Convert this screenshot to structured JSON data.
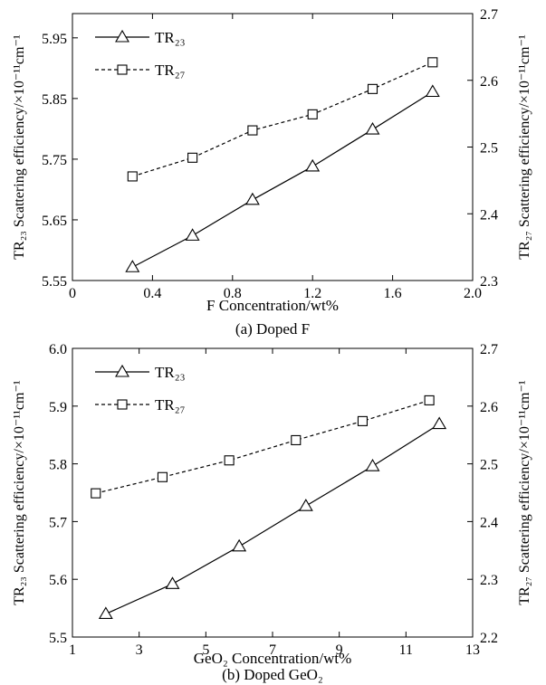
{
  "chart_data": [
    {
      "type": "line",
      "xlabel": "F Concentration/wt%",
      "caption": "(a) Doped F",
      "ylabel_left": "TR₂₃ Scattering efficiency/×10⁻¹¹cm⁻¹",
      "ylabel_right": "TR₂₇ Scattering efficiency/×10⁻¹¹cm⁻¹",
      "xlim": [
        0,
        2.0
      ],
      "xticks": [
        "0",
        "0.4",
        "0.8",
        "1.2",
        "1.6",
        "2.0"
      ],
      "ylim_left": [
        5.55,
        5.99
      ],
      "yticks_left": [
        "5.55",
        "5.65",
        "5.75",
        "5.85",
        "5.95"
      ],
      "ylim_right": [
        2.3,
        2.7
      ],
      "yticks_right": [
        "2.3",
        "2.4",
        "2.5",
        "2.6",
        "2.7"
      ],
      "legend_position": "top-left",
      "series": [
        {
          "name": "TR₂₃",
          "axis": "left",
          "marker": "triangle",
          "style": "solid",
          "x": [
            0.3,
            0.6,
            0.9,
            1.2,
            1.5,
            1.8
          ],
          "y": [
            5.572,
            5.624,
            5.683,
            5.738,
            5.799,
            5.861
          ]
        },
        {
          "name": "TR₂₇",
          "axis": "right",
          "marker": "square",
          "style": "dashed",
          "x": [
            0.3,
            0.6,
            0.9,
            1.2,
            1.5,
            1.8
          ],
          "y": [
            2.456,
            2.484,
            2.525,
            2.549,
            2.587,
            2.627
          ]
        }
      ]
    },
    {
      "type": "line",
      "xlabel": "GeO₂ Concentration/wt%",
      "caption": "(b) Doped GeO₂",
      "ylabel_left": "TR₂₃ Scattering efficiency/×10⁻¹¹cm⁻¹",
      "ylabel_right": "TR₂₇ Scattering efficiency/×10⁻¹¹cm⁻¹",
      "xlim": [
        1,
        13
      ],
      "xticks": [
        "1",
        "3",
        "5",
        "7",
        "9",
        "11",
        "13"
      ],
      "ylim_left": [
        5.5,
        6.0
      ],
      "yticks_left": [
        "5.5",
        "5.6",
        "5.7",
        "5.8",
        "5.9",
        "6.0"
      ],
      "ylim_right": [
        2.2,
        2.7
      ],
      "yticks_right": [
        "2.2",
        "2.3",
        "2.4",
        "2.5",
        "2.6",
        "2.7"
      ],
      "legend_position": "top-left",
      "series": [
        {
          "name": "TR₂₃",
          "axis": "left",
          "marker": "triangle",
          "style": "solid",
          "x": [
            2,
            4,
            6,
            8,
            10,
            12
          ],
          "y": [
            5.54,
            5.592,
            5.657,
            5.727,
            5.796,
            5.869
          ]
        },
        {
          "name": "TR₂₇",
          "axis": "right",
          "marker": "square",
          "style": "dashed",
          "x": [
            1.7,
            3.7,
            5.7,
            7.7,
            9.7,
            11.7
          ],
          "y": [
            2.449,
            2.477,
            2.506,
            2.541,
            2.574,
            2.61
          ]
        }
      ]
    }
  ]
}
